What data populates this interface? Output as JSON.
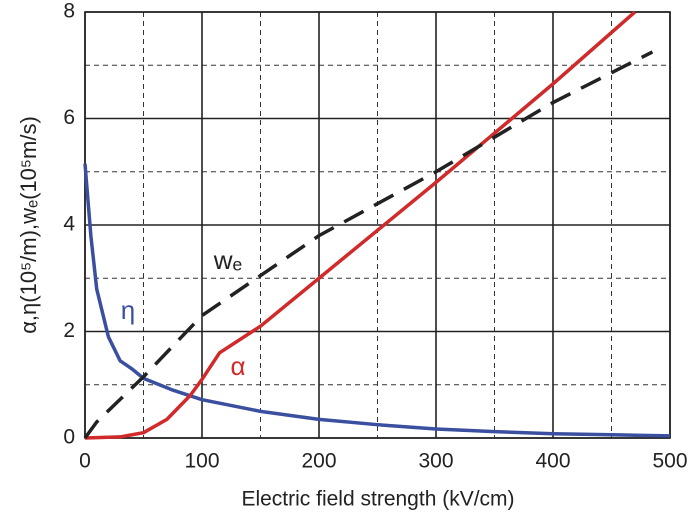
{
  "chart_data": {
    "type": "line",
    "xlabel": "Electric field strength (kV/cm)",
    "ylabel": "α,η(10⁵/m),wₑ(10⁵m/s)",
    "xlim": [
      0,
      500
    ],
    "ylim": [
      0,
      8
    ],
    "xticks": [
      0,
      100,
      200,
      300,
      400,
      500
    ],
    "yticks": [
      0,
      2,
      4,
      6,
      8
    ],
    "xminor": [
      50,
      150,
      250,
      350,
      450
    ],
    "yminor": [
      1,
      3,
      5,
      7
    ],
    "grid": true,
    "series": [
      {
        "name": "η",
        "color": "#3a4fa0",
        "dash": false,
        "x": [
          0,
          5,
          10,
          20,
          30,
          40,
          50,
          75,
          100,
          150,
          200,
          250,
          300,
          350,
          400,
          450,
          500
        ],
        "values": [
          5.15,
          3.8,
          2.8,
          1.9,
          1.45,
          1.3,
          1.12,
          0.9,
          0.72,
          0.5,
          0.35,
          0.25,
          0.17,
          0.12,
          0.08,
          0.06,
          0.04
        ]
      },
      {
        "name": "α",
        "color": "#d02a2a",
        "dash": false,
        "x": [
          0,
          30,
          50,
          70,
          90,
          100,
          115,
          150,
          200,
          300,
          400,
          470
        ],
        "values": [
          0,
          0.02,
          0.1,
          0.35,
          0.8,
          1.1,
          1.6,
          2.1,
          3.0,
          4.8,
          6.65,
          8.0
        ]
      },
      {
        "name": "wₑ",
        "color": "#222222",
        "dash": true,
        "x": [
          0,
          10,
          50,
          100,
          200,
          300,
          400,
          485
        ],
        "values": [
          0,
          0.3,
          1.15,
          2.3,
          3.8,
          5.0,
          6.3,
          7.25
        ]
      }
    ]
  }
}
